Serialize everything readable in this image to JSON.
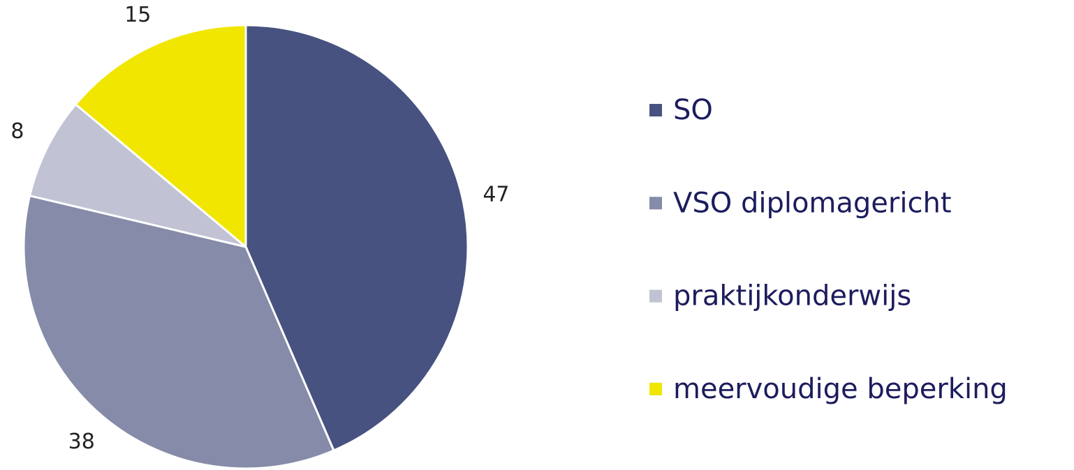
{
  "chart_data": {
    "type": "pie",
    "categories": [
      "SO",
      "VSO diplomagericht",
      "praktijkonderwijs",
      "meervoudige beperking"
    ],
    "values": [
      47,
      38,
      8,
      15
    ],
    "colors": [
      "#475280",
      "#858ba8",
      "#c1c3d4",
      "#f0e600"
    ],
    "legend": "right"
  }
}
